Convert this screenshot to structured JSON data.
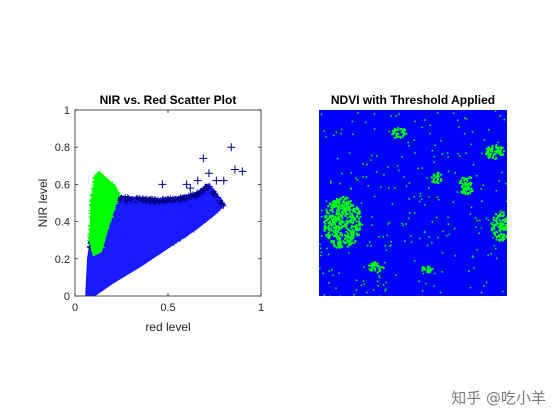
{
  "chart_data": [
    {
      "type": "scatter",
      "title": "NIR vs. Red Scatter Plot",
      "xlabel": "red level",
      "ylabel": "NIR level",
      "xlim": [
        0,
        1
      ],
      "ylim": [
        0,
        1
      ],
      "x_ticks": [
        "0",
        "0.5",
        "1"
      ],
      "y_ticks": [
        "0",
        "0.2",
        "0.4",
        "0.6",
        "0.8",
        "1"
      ],
      "grid": false,
      "marker": "+",
      "series": [
        {
          "color": "#1a1aff",
          "marker_color": "#000080",
          "region": {
            "x_range": [
              0.08,
              0.9
            ],
            "lower_edge": [
              [
                0.06,
                0.0
              ],
              [
                0.1,
                0.0
              ],
              [
                0.2,
                0.07
              ],
              [
                0.35,
                0.16
              ],
              [
                0.5,
                0.26
              ],
              [
                0.65,
                0.36
              ],
              [
                0.75,
                0.44
              ],
              [
                0.8,
                0.49
              ]
            ],
            "upper_edge": [
              [
                0.06,
                0.0
              ],
              [
                0.07,
                0.2
              ],
              [
                0.1,
                0.4
              ],
              [
                0.14,
                0.52
              ],
              [
                0.2,
                0.54
              ],
              [
                0.3,
                0.53
              ],
              [
                0.45,
                0.52
              ],
              [
                0.55,
                0.53
              ],
              [
                0.65,
                0.55
              ],
              [
                0.72,
                0.6
              ],
              [
                0.8,
                0.49
              ]
            ]
          },
          "outliers": [
            [
              0.69,
              0.74
            ],
            [
              0.84,
              0.8
            ],
            [
              0.9,
              0.67
            ],
            [
              0.72,
              0.66
            ],
            [
              0.86,
              0.68
            ],
            [
              0.8,
              0.62
            ],
            [
              0.47,
              0.6
            ],
            [
              0.66,
              0.62
            ],
            [
              0.76,
              0.62
            ],
            [
              0.6,
              0.6
            ],
            [
              0.62,
              0.58
            ],
            [
              0.7,
              0.58
            ]
          ]
        },
        {
          "color": "#00ff00",
          "region": {
            "x_range": [
              0.07,
              0.23
            ],
            "lower_edge": [
              [
                0.08,
                0.3
              ],
              [
                0.1,
                0.22
              ],
              [
                0.14,
                0.24
              ],
              [
                0.18,
                0.38
              ],
              [
                0.22,
                0.5
              ],
              [
                0.23,
                0.55
              ]
            ],
            "upper_edge": [
              [
                0.08,
                0.3
              ],
              [
                0.09,
                0.5
              ],
              [
                0.11,
                0.64
              ],
              [
                0.13,
                0.66
              ],
              [
                0.16,
                0.63
              ],
              [
                0.2,
                0.6
              ],
              [
                0.23,
                0.55
              ]
            ]
          }
        }
      ]
    },
    {
      "type": "heatmap",
      "title": "NDVI with Threshold Applied",
      "colors": [
        "#0000ff",
        "#00ff00"
      ],
      "axes_visible": false,
      "patches": [
        {
          "cx": 0.12,
          "cy": 0.6,
          "rx": 0.1,
          "ry": 0.14
        },
        {
          "cx": 0.96,
          "cy": 0.62,
          "rx": 0.05,
          "ry": 0.08
        },
        {
          "cx": 0.93,
          "cy": 0.22,
          "rx": 0.05,
          "ry": 0.04
        },
        {
          "cx": 0.42,
          "cy": 0.12,
          "rx": 0.04,
          "ry": 0.03
        },
        {
          "cx": 0.78,
          "cy": 0.4,
          "rx": 0.04,
          "ry": 0.05
        },
        {
          "cx": 0.62,
          "cy": 0.36,
          "rx": 0.03,
          "ry": 0.03
        },
        {
          "cx": 0.3,
          "cy": 0.84,
          "rx": 0.04,
          "ry": 0.03
        },
        {
          "cx": 0.57,
          "cy": 0.85,
          "rx": 0.03,
          "ry": 0.02
        }
      ]
    }
  ],
  "watermark": "知乎 @吃小羊"
}
